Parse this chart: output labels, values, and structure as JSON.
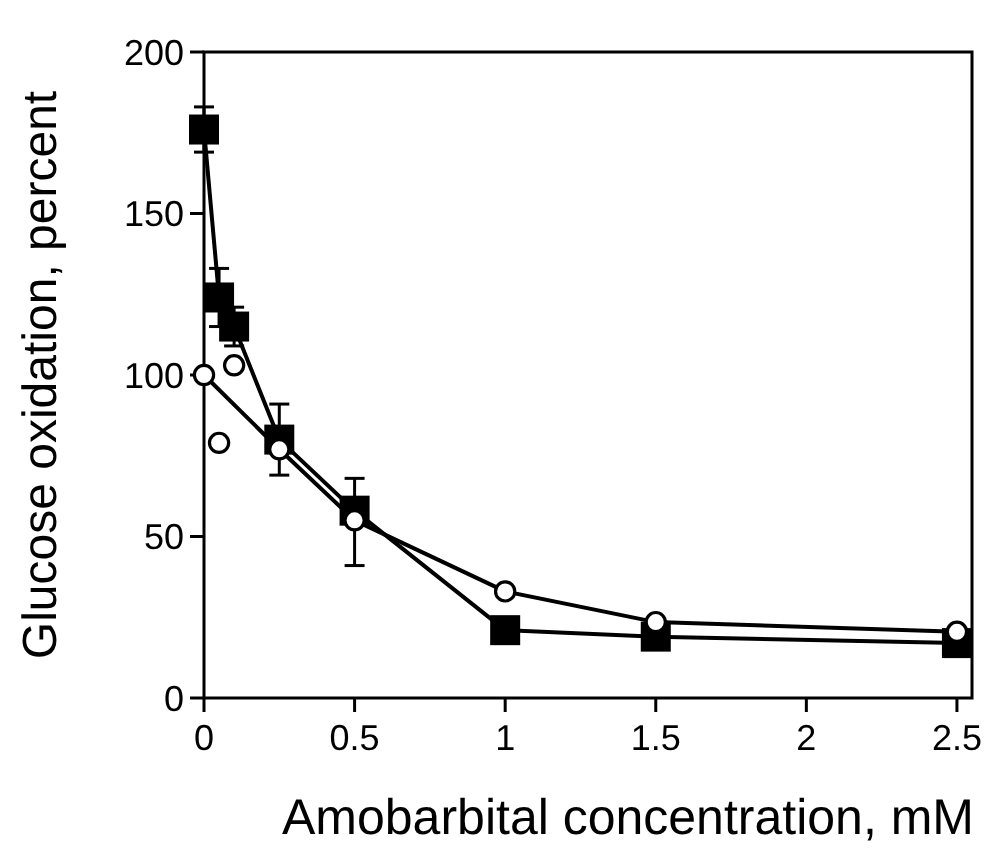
{
  "chart_data": {
    "type": "line",
    "xlabel": "Amobarbital concentration, mM",
    "ylabel": "Glucose oxidation, percent",
    "xlim": [
      0,
      2.55
    ],
    "ylim": [
      0,
      200
    ],
    "xticks": [
      0,
      0.5,
      1,
      1.5,
      2,
      2.5
    ],
    "yticks": [
      0,
      50,
      100,
      150,
      200
    ],
    "grid": false,
    "series": [
      {
        "marker": "square",
        "color": "#000000",
        "x": [
          0,
          0.05,
          0.1,
          0.25,
          0.5,
          1,
          1.5,
          2.5
        ],
        "values": [
          176,
          124,
          115,
          80,
          58,
          21,
          19,
          17
        ],
        "errors": [
          7,
          9,
          6,
          11,
          [
            41,
            68
          ],
          null,
          null,
          null
        ]
      },
      {
        "marker": "circle",
        "color": "#000000",
        "x": [
          0,
          0.25,
          0.5,
          1,
          1.5,
          2.5
        ],
        "values": [
          100,
          77,
          55,
          33,
          23.5,
          20.5
        ]
      },
      {
        "type": "scatter",
        "marker": "circle",
        "color": "#000000",
        "x": [
          0.05,
          0.1
        ],
        "values": [
          79,
          103
        ]
      }
    ]
  }
}
